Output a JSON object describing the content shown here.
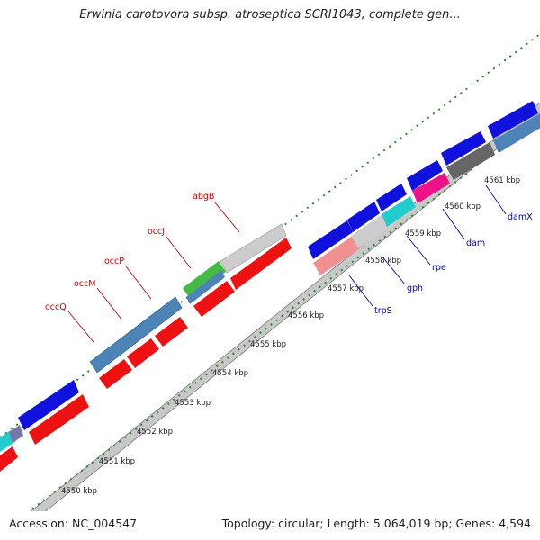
{
  "title": "Erwinia carotovora subsp. atroseptica SCRI1043, complete gen...",
  "footer": {
    "accession": "Accession: NC_004547",
    "summary": "Topology: circular; Length: 5,064,019 bp; Genes: 4,594"
  },
  "colors": {
    "backbone": "#a8a8a8",
    "ticks": "#1e8a1e",
    "forward_label": "#cc0000",
    "reverse_label": "#0000bb"
  },
  "scale_labels": [
    "4550 kbp",
    "4551 kbp",
    "4552 kbp",
    "4553 kbp",
    "4554 kbp",
    "4555 kbp",
    "4556 kbp",
    "4557 kbp",
    "4558 kbp",
    "4559 kbp",
    "4560 kbp",
    "4561 kbp"
  ],
  "gene_labels_top": [
    "occQ",
    "occM",
    "occP",
    "occJ",
    "abgB"
  ],
  "gene_labels_bottom": [
    "trpS",
    "gph",
    "rpe",
    "dam",
    "damX"
  ]
}
